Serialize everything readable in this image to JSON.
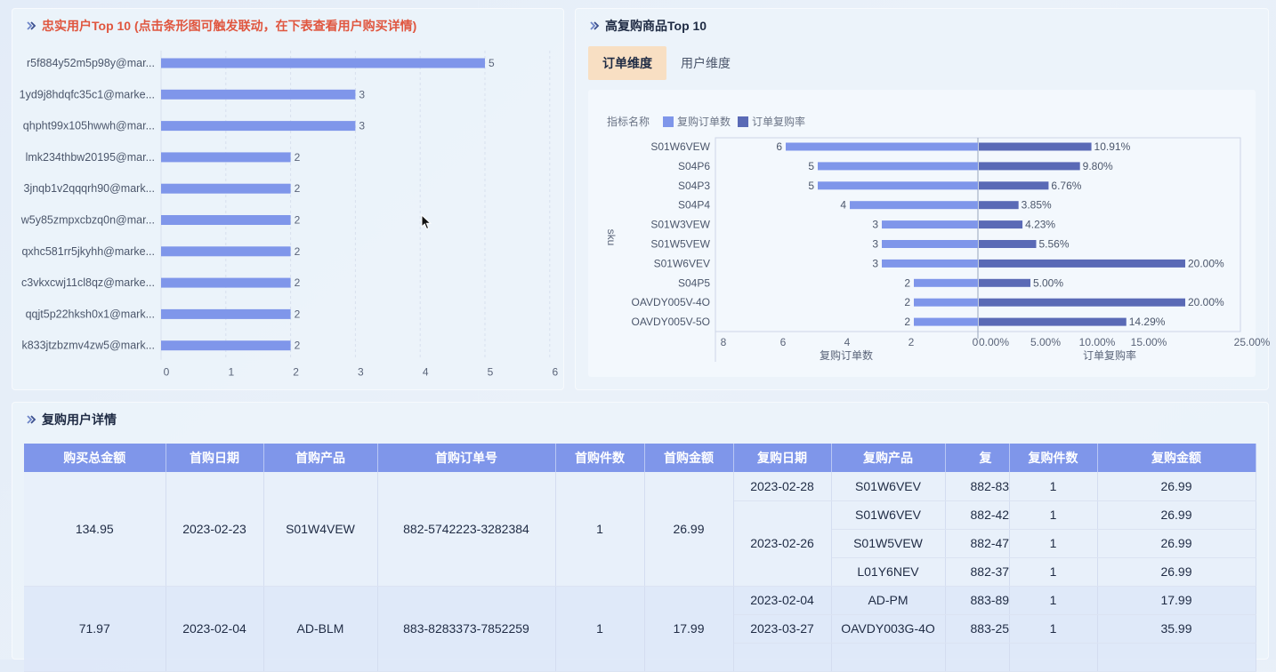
{
  "colors": {
    "bar": "#7f96ea",
    "bar_dark": "#5a6ab6",
    "title_accent": "#e0563f",
    "header_bg": "#7f96ea",
    "tab_active": "#f8dfc3"
  },
  "left_panel": {
    "title": "忠实用户Top 10 (点击条形图可触发联动，在下表查看用户购买详情)"
  },
  "right_panel": {
    "title": "高复购商品Top 10",
    "tabs": [
      {
        "label": "订单维度",
        "active": true
      },
      {
        "label": "用户维度",
        "active": false
      }
    ],
    "legend": {
      "title": "指标名称",
      "items": [
        "复购订单数",
        "订单复购率"
      ]
    }
  },
  "bottom_panel": {
    "title": "复购用户详情",
    "columns": [
      "购买总金额",
      "首购日期",
      "首购产品",
      "首购订单号",
      "首购件数",
      "首购金额",
      "复购日期",
      "复购产品",
      "复",
      "复购件数",
      "复购金额"
    ],
    "groups": [
      {
        "total": "134.95",
        "first_date": "2023-02-23",
        "first_product": "S01W4VEW",
        "first_order": "882-5742223-3282384",
        "first_qty": "1",
        "first_amount": "26.99",
        "repurchases": [
          {
            "date": "2023-02-28",
            "product": "S01W6VEV",
            "order": "882-83",
            "qty": "1",
            "amount": "26.99"
          },
          {
            "date": "2023-02-26",
            "product": "S01W6VEV",
            "order": "882-42",
            "qty": "1",
            "amount": "26.99"
          },
          {
            "date": "",
            "product": "S01W5VEW",
            "order": "882-47",
            "qty": "1",
            "amount": "26.99"
          },
          {
            "date": "",
            "product": "L01Y6NEV",
            "order": "882-37",
            "qty": "1",
            "amount": "26.99"
          }
        ]
      },
      {
        "total": "71.97",
        "first_date": "2023-02-04",
        "first_product": "AD-BLM",
        "first_order": "883-8283373-7852259",
        "first_qty": "1",
        "first_amount": "17.99",
        "repurchases": [
          {
            "date": "2023-02-04",
            "product": "AD-PM",
            "order": "883-89",
            "qty": "1",
            "amount": "17.99"
          },
          {
            "date": "2023-03-27",
            "product": "OAVDY003G-4O",
            "order": "883-25",
            "qty": "1",
            "amount": "35.99"
          },
          {
            "date": "",
            "product": "",
            "order": "",
            "qty": "",
            "amount": ""
          }
        ]
      }
    ]
  },
  "chart_data": [
    {
      "type": "bar",
      "orientation": "horizontal",
      "categories": [
        "r5f884y52m5p98y@mar...",
        "1yd9j8hdqfc35c1@marke...",
        "qhpht99x105hwwh@mar...",
        "lmk234thbw20195@mar...",
        "3jnqb1v2qqqrh90@mark...",
        "w5y85zmpxcbzq0n@mar...",
        "qxhc581rr5jkyhh@marke...",
        "c3vkxcwj11cl8qz@marke...",
        "qqjt5p22hksh0x1@mark...",
        "k833jtzbzmv4zw5@mark..."
      ],
      "values": [
        5,
        3,
        3,
        2,
        2,
        2,
        2,
        2,
        2,
        2
      ],
      "xlim": [
        0,
        6
      ],
      "xticks": [
        "0",
        "1",
        "2",
        "3",
        "4",
        "5",
        "6"
      ],
      "grid": true
    },
    {
      "type": "bar",
      "orientation": "horizontal-mirrored",
      "ylabel": "sku",
      "categories": [
        "S01W6VEW",
        "S04P6",
        "S04P3",
        "S04P4",
        "S01W3VEW",
        "S01W5VEW",
        "S01W6VEV",
        "S04P5",
        "OAVDY005V-4O",
        "OAVDY005V-5O"
      ],
      "series": [
        {
          "name": "复购订单数",
          "values": [
            6,
            5,
            5,
            4,
            3,
            3,
            3,
            2,
            2,
            2
          ],
          "labels": [
            "6",
            "5",
            "5",
            "4",
            "3",
            "3",
            "3",
            "2",
            "2",
            "2"
          ],
          "xlim": [
            0,
            8
          ],
          "xticks": [
            "8",
            "6",
            "4",
            "2",
            "0"
          ],
          "xlabel": "复购订单数"
        },
        {
          "name": "订单复购率",
          "values": [
            10.91,
            9.8,
            6.76,
            3.85,
            4.23,
            5.56,
            20.0,
            5.0,
            20.0,
            14.29
          ],
          "labels": [
            "10.91%",
            "9.80%",
            "6.76%",
            "3.85%",
            "4.23%",
            "5.56%",
            "20.00%",
            "5.00%",
            "20.00%",
            "14.29%"
          ],
          "xlim": [
            0,
            25
          ],
          "xticks": [
            "0.00%",
            "5.00%",
            "10.00%",
            "15.00%",
            "25.00%"
          ],
          "xlabel": "订单复购率"
        }
      ]
    }
  ]
}
